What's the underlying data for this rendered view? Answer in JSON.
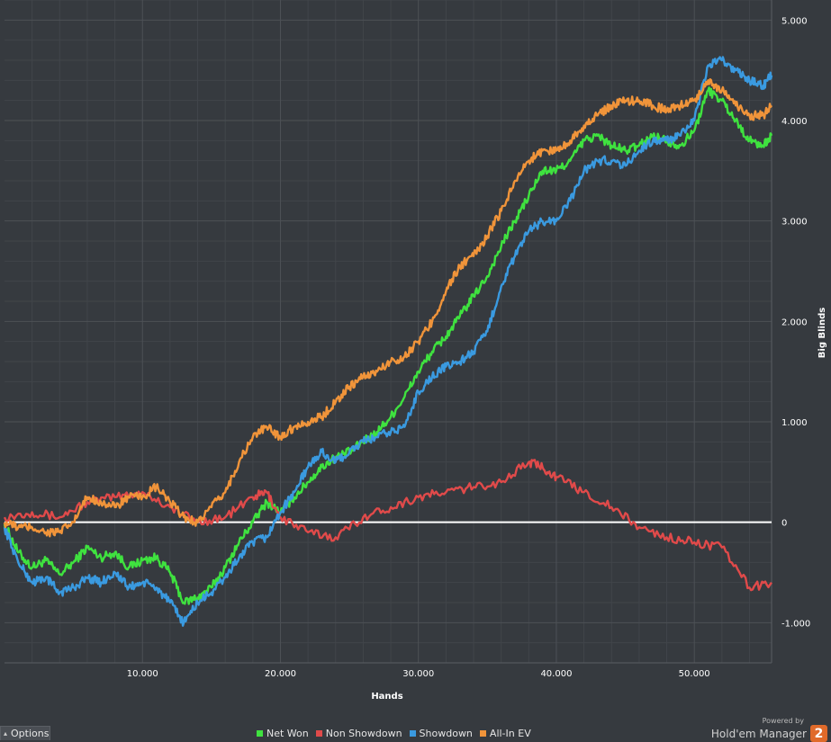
{
  "chart_data": {
    "type": "line",
    "xlabel": "Hands",
    "ylabel": "Big Blinds",
    "xlim": [
      0,
      55600
    ],
    "ylim": [
      -1400,
      5200
    ],
    "x_ticks": [
      10000,
      20000,
      30000,
      40000,
      50000
    ],
    "x_tick_labels": [
      "10.000",
      "20.000",
      "30.000",
      "40.000",
      "50.000"
    ],
    "y_ticks": [
      -1000,
      0,
      1000,
      2000,
      3000,
      4000,
      5000
    ],
    "y_tick_labels": [
      "-1.000",
      "0",
      "1.000",
      "2.000",
      "3.000",
      "4.000",
      "5.000"
    ],
    "grid": true,
    "legend_position": "bottom",
    "series": [
      {
        "name": "Net Won",
        "color": "#3fe23f",
        "x": [
          0,
          1000,
          2000,
          3000,
          4000,
          5000,
          6000,
          7000,
          8000,
          9000,
          10000,
          11000,
          12000,
          13000,
          14000,
          15000,
          16000,
          17000,
          18000,
          19000,
          20000,
          21000,
          22000,
          23000,
          24000,
          25000,
          26000,
          27000,
          28000,
          29000,
          30000,
          31000,
          32000,
          33000,
          34000,
          35000,
          36000,
          37000,
          38000,
          39000,
          40000,
          41000,
          42000,
          43000,
          44000,
          45000,
          46000,
          47000,
          48000,
          49000,
          50000,
          51000,
          52000,
          53000,
          54000,
          55000,
          55600
        ],
        "y": [
          -20,
          -300,
          -450,
          -380,
          -520,
          -400,
          -250,
          -350,
          -300,
          -450,
          -380,
          -350,
          -500,
          -800,
          -750,
          -650,
          -450,
          -200,
          0,
          200,
          100,
          250,
          400,
          550,
          650,
          700,
          800,
          900,
          1050,
          1250,
          1500,
          1700,
          1850,
          2050,
          2250,
          2450,
          2750,
          3000,
          3250,
          3500,
          3500,
          3600,
          3800,
          3850,
          3750,
          3700,
          3750,
          3850,
          3800,
          3750,
          3900,
          4300,
          4200,
          4000,
          3800,
          3750,
          3850
        ]
      },
      {
        "name": "Non Showdown",
        "color": "#e04a4a",
        "x": [
          0,
          2000,
          4000,
          6000,
          8000,
          10000,
          12000,
          14000,
          16000,
          18000,
          19000,
          20000,
          22000,
          24000,
          26000,
          28000,
          30000,
          32000,
          34000,
          36000,
          38000,
          39000,
          40000,
          42000,
          44000,
          46000,
          48000,
          50000,
          52000,
          54000,
          55600
        ],
        "y": [
          50,
          100,
          50,
          200,
          250,
          300,
          150,
          0,
          50,
          250,
          300,
          50,
          -100,
          -150,
          50,
          150,
          250,
          300,
          350,
          400,
          600,
          550,
          450,
          300,
          150,
          -50,
          -150,
          -200,
          -250,
          -650,
          -600
        ]
      },
      {
        "name": "Showdown",
        "color": "#3a9ae0",
        "x": [
          0,
          1000,
          2000,
          3000,
          4000,
          5000,
          6000,
          7000,
          8000,
          9000,
          10000,
          11000,
          12000,
          13000,
          14000,
          15000,
          16000,
          17000,
          18000,
          19000,
          20000,
          21000,
          22000,
          23000,
          24000,
          25000,
          26000,
          27000,
          28000,
          29000,
          30000,
          31000,
          32000,
          33000,
          34000,
          35000,
          36000,
          37000,
          38000,
          39000,
          40000,
          41000,
          42000,
          43000,
          44000,
          45000,
          46000,
          47000,
          48000,
          49000,
          50000,
          51000,
          52000,
          53000,
          54000,
          55000,
          55600
        ],
        "y": [
          -50,
          -400,
          -600,
          -550,
          -700,
          -650,
          -550,
          -600,
          -500,
          -650,
          -600,
          -650,
          -800,
          -1000,
          -800,
          -700,
          -550,
          -350,
          -200,
          -150,
          100,
          300,
          550,
          700,
          600,
          700,
          800,
          850,
          900,
          950,
          1300,
          1450,
          1550,
          1600,
          1700,
          1900,
          2350,
          2650,
          2900,
          3000,
          3000,
          3200,
          3500,
          3600,
          3600,
          3550,
          3700,
          3800,
          3800,
          3850,
          4000,
          4550,
          4600,
          4500,
          4400,
          4350,
          4450
        ]
      },
      {
        "name": "All-In EV",
        "color": "#f0943a",
        "x": [
          0,
          1000,
          2000,
          3000,
          4000,
          5000,
          6000,
          7000,
          8000,
          9000,
          10000,
          11000,
          12000,
          13000,
          14000,
          15000,
          16000,
          17000,
          18000,
          19000,
          20000,
          21000,
          22000,
          23000,
          24000,
          25000,
          26000,
          27000,
          28000,
          29000,
          30000,
          31000,
          32000,
          33000,
          34000,
          35000,
          36000,
          37000,
          38000,
          39000,
          40000,
          41000,
          42000,
          43000,
          44000,
          45000,
          46000,
          47000,
          48000,
          49000,
          50000,
          51000,
          52000,
          53000,
          54000,
          55000,
          55600
        ],
        "y": [
          0,
          -50,
          -50,
          -100,
          -100,
          0,
          250,
          200,
          150,
          250,
          250,
          350,
          200,
          50,
          0,
          150,
          300,
          600,
          850,
          950,
          850,
          950,
          1000,
          1050,
          1200,
          1350,
          1450,
          1500,
          1600,
          1650,
          1800,
          2000,
          2300,
          2550,
          2650,
          2850,
          3100,
          3400,
          3600,
          3700,
          3700,
          3800,
          3950,
          4050,
          4150,
          4200,
          4200,
          4150,
          4100,
          4150,
          4200,
          4400,
          4300,
          4150,
          4050,
          4050,
          4150
        ]
      }
    ]
  },
  "ui": {
    "options_label": "Options",
    "powered_by": "Powered by",
    "brand_name": "Hold'em Manager",
    "brand_badge": "2",
    "zero_line_color": "#ffffff"
  }
}
